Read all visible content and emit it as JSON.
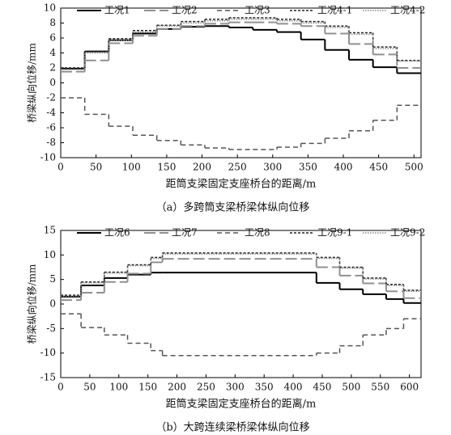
{
  "chart_data": [
    {
      "type": "step",
      "xlabel": "距筒支梁固定支座桥台的距离/m",
      "ylabel": "桥梁纵向位移/mm",
      "caption": "（a）多跨筒支梁桥梁体纵向位移",
      "x": [
        0,
        34,
        68,
        102,
        136,
        170,
        204,
        238,
        272,
        306,
        340,
        374,
        408,
        442,
        476
      ],
      "xlim": [
        0,
        510
      ],
      "xticks": [
        0,
        50,
        100,
        150,
        200,
        250,
        300,
        350,
        400,
        450,
        500
      ],
      "ylim": [
        -10,
        10
      ],
      "yticks": [
        10,
        8,
        6,
        4,
        2,
        0,
        -2,
        -4,
        -6,
        -8,
        -10
      ],
      "series": [
        {
          "name": "工况1",
          "color": "#000000",
          "dash": "none",
          "width": 2,
          "values": [
            1.9,
            4.2,
            5.7,
            6.6,
            7.2,
            7.5,
            7.6,
            7.4,
            7.1,
            6.8,
            5.8,
            4.4,
            3.1,
            2.1,
            1.3
          ]
        },
        {
          "name": "工况2",
          "color": "#909090",
          "dash": "14 5",
          "width": 2,
          "values": [
            1.5,
            3.0,
            5.3,
            6.3,
            7.2,
            7.6,
            7.9,
            8.1,
            8.1,
            7.9,
            7.6,
            6.6,
            5.2,
            3.8,
            2.0
          ]
        },
        {
          "name": "工况3",
          "color": "#555555",
          "dash": "6 4",
          "width": 1.5,
          "values": [
            -2,
            -4.2,
            -5.8,
            -7,
            -7.7,
            -8.3,
            -8.7,
            -8.9,
            -8.9,
            -8.6,
            -8.1,
            -7.4,
            -6.4,
            -5,
            -3
          ]
        },
        {
          "name": "工况4-1",
          "color": "#222222",
          "dash": "3 2",
          "width": 1.5,
          "values": [
            2,
            4.2,
            5.9,
            7,
            7.7,
            8.2,
            8.5,
            8.7,
            8.7,
            8.5,
            8.2,
            7.6,
            6.7,
            4.8,
            3
          ]
        },
        {
          "name": "工况4-2",
          "color": "#888888",
          "dash": "1.5 1.5",
          "width": 1.5,
          "values": [
            1.8,
            4,
            5.7,
            6.8,
            7.6,
            8,
            8.3,
            8.5,
            8.5,
            8.3,
            8,
            7.4,
            6.5,
            4.6,
            2.9
          ]
        }
      ]
    },
    {
      "type": "step",
      "xlabel": "距筒支梁固定支座桥台的距离/m",
      "ylabel": "桥梁纵向位移/mm",
      "caption": "（b）大跨连续梁桥梁体纵向位移",
      "x": [
        0,
        35,
        75,
        115,
        155,
        175,
        440,
        480,
        520,
        560,
        590
      ],
      "xlim": [
        0,
        620
      ],
      "xticks": [
        0,
        50,
        100,
        150,
        200,
        250,
        300,
        350,
        400,
        450,
        500,
        550,
        600
      ],
      "ylim": [
        -15,
        15
      ],
      "yticks": [
        15,
        10,
        5,
        0,
        -5,
        -10,
        -15
      ],
      "series": [
        {
          "name": "工况6",
          "color": "#000000",
          "dash": "none",
          "width": 2,
          "values": [
            1.5,
            3.8,
            5.3,
            6,
            6.4,
            6.4,
            4.3,
            3,
            2,
            1,
            0.2
          ]
        },
        {
          "name": "工况7",
          "color": "#909090",
          "dash": "14 5",
          "width": 2,
          "values": [
            0.8,
            2.3,
            4.5,
            6.2,
            8.5,
            9.2,
            7.5,
            5.8,
            4.2,
            2.6,
            1.2
          ]
        },
        {
          "name": "工况8",
          "color": "#555555",
          "dash": "6 4",
          "width": 1.5,
          "values": [
            -2,
            -4.8,
            -6.3,
            -8,
            -9.5,
            -10.5,
            -10,
            -8.5,
            -6.3,
            -5,
            -3
          ]
        },
        {
          "name": "工况9-1",
          "color": "#222222",
          "dash": "3 2",
          "width": 1.5,
          "values": [
            1.8,
            4.5,
            6.5,
            8,
            9.5,
            10.4,
            9.5,
            7.5,
            5.3,
            4,
            2.8
          ]
        },
        {
          "name": "工况9-2",
          "color": "#888888",
          "dash": "1.5 1.5",
          "width": 1.5,
          "values": [
            1.6,
            4.3,
            6.3,
            7.8,
            9.3,
            10.2,
            9.3,
            7.3,
            5.1,
            3.8,
            2.6
          ]
        }
      ]
    }
  ]
}
